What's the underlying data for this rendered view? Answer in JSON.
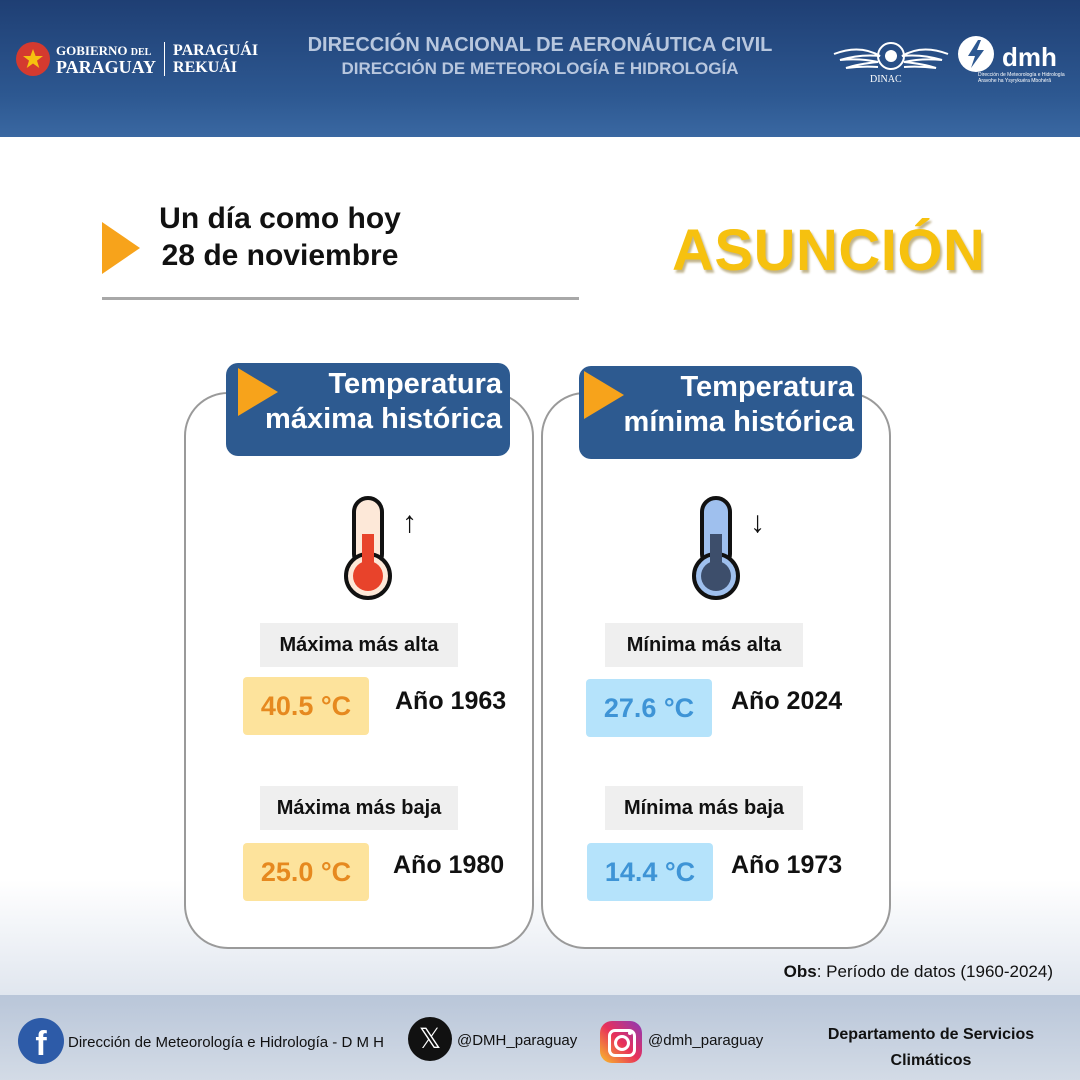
{
  "header": {
    "gov_line1": "GOBIERNO",
    "gov_del": "DEL",
    "gov_line2": "PARAGUAY",
    "slogan_line1": "PARAGUÁI",
    "slogan_line2": "REKUÁI",
    "title": "DIRECCIÓN NACIONAL DE AERONÁUTICA CIVIL",
    "subtitle": "DIRECCIÓN DE METEOROLOGÍA  E HIDROLOGÍA",
    "dinac_label": "DINAC",
    "dmh_label": "dmh",
    "dmh_sub1": "Dirección de Meteorología e Hidrología",
    "dmh_sub2": "Aravohe ha Ysyrykuéra Mbohérã"
  },
  "date": {
    "line1": "Un día como hoy",
    "line2": "28 de noviembre"
  },
  "city": "ASUNCIÓN",
  "cards": {
    "max": {
      "title_line1": "Temperatura",
      "title_line2": "máxima histórica",
      "arrow": "↑",
      "high_label": "Máxima más alta",
      "high_value": "40.5 °C",
      "high_year": "Año 1963",
      "low_label": "Máxima más baja",
      "low_value": "25.0 °C",
      "low_year": "Año 1980"
    },
    "min": {
      "title_line1": "Temperatura",
      "title_line2": "mínima histórica",
      "arrow": "↓",
      "high_label": "Mínima más alta",
      "high_value": "27.6 °C",
      "high_year": "Año 2024",
      "low_label": "Mínima más baja",
      "low_value": "14.4 °C",
      "low_year": "Año 1973"
    }
  },
  "obs": {
    "label": "Obs",
    "text": ": Período de datos (1960-2024)"
  },
  "footer": {
    "facebook_icon": "f",
    "facebook_text": "Dirección de Meteorología e Hidrología - D M H",
    "x_icon": "𝕏",
    "x_handle": "@DMH_paraguay",
    "instagram_handle": "@dmh_paraguay",
    "dept_line1": "Departamento de Servicios",
    "dept_line2": "Climáticos"
  },
  "colors": {
    "header_blue": "#2d5891",
    "accent_orange": "#f7a31b",
    "city_yellow": "#f6c10f",
    "hot_text": "#e6891f",
    "hot_bg": "#fde39c",
    "cold_text": "#3e94d6",
    "cold_bg": "#b5e3fb"
  }
}
